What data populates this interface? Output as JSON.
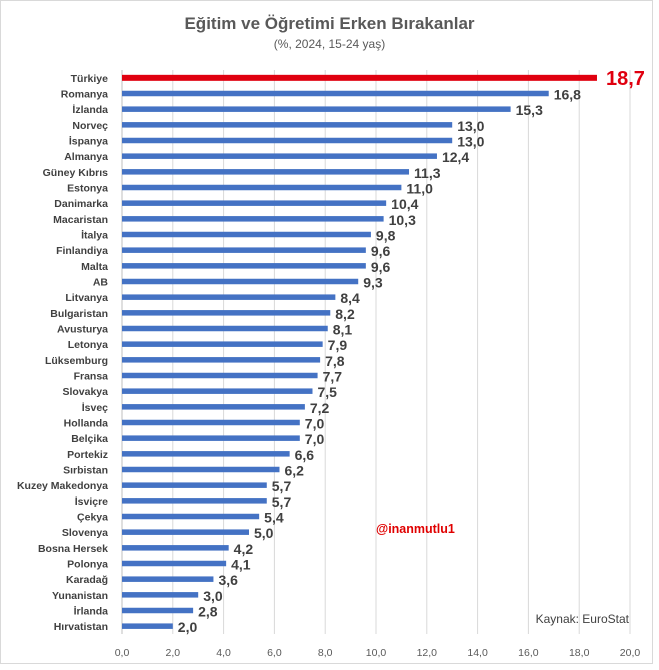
{
  "title": "Eğitim ve Öğretimi Erken Bırakanlar",
  "subtitle": "(%, 2024, 15-24 yaş)",
  "source": "Kaynak: EuroStat",
  "handle": "@inanmutlu1",
  "colors": {
    "bar": "#4472c4",
    "highlight": "#e0000f",
    "grid": "#d9d9d9"
  },
  "chart_data": {
    "type": "bar",
    "orientation": "horizontal",
    "title": "Eğitim ve Öğretimi Erken Bırakanlar",
    "subtitle": "(%, 2024, 15-24 yaş)",
    "xlim": [
      0,
      20
    ],
    "xticks": [
      "0,0",
      "2,0",
      "4,0",
      "6,0",
      "8,0",
      "10,0",
      "12,0",
      "14,0",
      "16,0",
      "18,0",
      "20,0"
    ],
    "grid": "vertical",
    "highlight_category": "Türkiye",
    "categories": [
      "Türkiye",
      "Romanya",
      "İzlanda",
      "Norveç",
      "İspanya",
      "Almanya",
      "Güney Kıbrıs",
      "Estonya",
      "Danimarka",
      "Macaristan",
      "İtalya",
      "Finlandiya",
      "Malta",
      "AB",
      "Litvanya",
      "Bulgaristan",
      "Avusturya",
      "Letonya",
      "Lüksemburg",
      "Fransa",
      "Slovakya",
      "İsveç",
      "Hollanda",
      "Belçika",
      "Portekiz",
      "Sırbistan",
      "Kuzey Makedonya",
      "İsviçre",
      "Çekya",
      "Slovenya",
      "Bosna Hersek",
      "Polonya",
      "Karadağ",
      "Yunanistan",
      "İrlanda",
      "Hırvatistan"
    ],
    "values": [
      18.7,
      16.8,
      15.3,
      13.0,
      13.0,
      12.4,
      11.3,
      11.0,
      10.4,
      10.3,
      9.8,
      9.6,
      9.6,
      9.3,
      8.4,
      8.2,
      8.1,
      7.9,
      7.8,
      7.7,
      7.5,
      7.2,
      7.0,
      7.0,
      6.6,
      6.2,
      5.7,
      5.7,
      5.4,
      5.0,
      4.2,
      4.1,
      3.6,
      3.0,
      2.8,
      2.0
    ],
    "value_labels": [
      "18,7",
      "16,8",
      "15,3",
      "13,0",
      "13,0",
      "12,4",
      "11,3",
      "11,0",
      "10,4",
      "10,3",
      "9,8",
      "9,6",
      "9,6",
      "9,3",
      "8,4",
      "8,2",
      "8,1",
      "7,9",
      "7,8",
      "7,7",
      "7,5",
      "7,2",
      "7,0",
      "7,0",
      "6,6",
      "6,2",
      "5,7",
      "5,7",
      "5,4",
      "5,0",
      "4,2",
      "4,1",
      "3,6",
      "3,0",
      "2,8",
      "2,0"
    ]
  }
}
